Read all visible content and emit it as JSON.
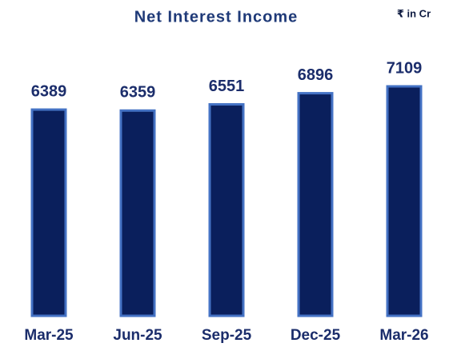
{
  "chart_data": {
    "type": "bar",
    "title": "Net Interest Income",
    "subtitle": "₹ in Cr",
    "categories": [
      "Mar-25",
      "Jun-25",
      "Sep-25",
      "Dec-25",
      "Mar-26"
    ],
    "values": [
      6389,
      6359,
      6551,
      6896,
      7109
    ],
    "color": "#0a1f5c",
    "edge_color": "#4472c4"
  }
}
